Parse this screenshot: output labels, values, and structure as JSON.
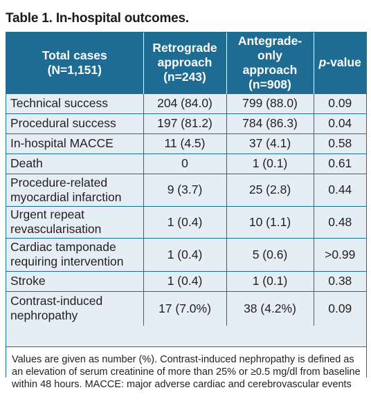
{
  "title": "Table 1. In-hospital outcomes.",
  "columns": [
    {
      "lines": [
        "Total cases",
        "(N=1,151)"
      ]
    },
    {
      "lines": [
        "Retrograde",
        "approach",
        "(n=243)"
      ]
    },
    {
      "lines": [
        "Antegrade-only",
        "approach",
        "(n=908)"
      ]
    },
    {
      "italic": "p",
      "rest": "-value"
    }
  ],
  "rows": [
    {
      "label": "Technical success",
      "retro": "204 (84.0)",
      "ante": "799 (88.0)",
      "p": "0.09"
    },
    {
      "label": "Procedural success",
      "retro": "197 (81.2)",
      "ante": "784 (86.3)",
      "p": "0.04"
    },
    {
      "label": "In-hospital MACCE",
      "retro": "11 (4.5)",
      "ante": "37 (4.1)",
      "p": "0.58"
    },
    {
      "label": "Death",
      "retro": "0",
      "ante": "1 (0.1)",
      "p": "0.61"
    },
    {
      "label": "Procedure-related myocardial infarction",
      "retro": "9 (3.7)",
      "ante": "25 (2.8)",
      "p": "0.44"
    },
    {
      "label": "Urgent repeat revascularisation",
      "retro": "1 (0.4)",
      "ante": "10 (1.1)",
      "p": "0.48"
    },
    {
      "label": "Cardiac tamponade requiring intervention",
      "retro": "1 (0.4)",
      "ante": "5 (0.6)",
      "p": ">0.99"
    },
    {
      "label": "Stroke",
      "retro": "1 (0.4)",
      "ante": "1 (0.1)",
      "p": "0.38"
    },
    {
      "label": "Contrast-induced nephropathy",
      "retro": "17 (7.0%)",
      "ante": "38 (4.2%)",
      "p": "0.09"
    }
  ],
  "footnote": "Values are given as number (%). Contrast-induced nephropathy is defined as an elevation of serum creatinine of more than 25% or ≥0.5 mg/dl from baseline within 48 hours. MACCE: major adverse cardiac and cerebrovascular events"
}
